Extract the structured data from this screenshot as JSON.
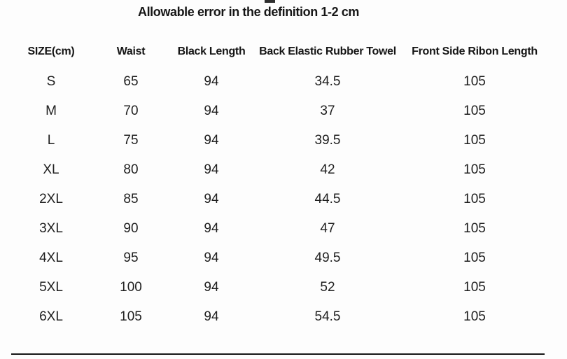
{
  "title": "Allowable error in the definition 1-2 cm",
  "colors": {
    "text": "#1e1e1e",
    "header_text": "#151515",
    "background": "#fdfdfd",
    "divider": "#161616"
  },
  "chart_data": {
    "type": "table",
    "title": "Allowable error in the definition 1-2 cm",
    "columns": [
      "SIZE(cm)",
      "Waist",
      "Black Length",
      "Back Elastic Rubber Towel",
      "Front Side Ribon Length"
    ],
    "rows": [
      [
        "S",
        "65",
        "94",
        "34.5",
        "105"
      ],
      [
        "M",
        "70",
        "94",
        "37",
        "105"
      ],
      [
        "L",
        "75",
        "94",
        "39.5",
        "105"
      ],
      [
        "XL",
        "80",
        "94",
        "42",
        "105"
      ],
      [
        "2XL",
        "85",
        "94",
        "44.5",
        "105"
      ],
      [
        "3XL",
        "90",
        "94",
        "47",
        "105"
      ],
      [
        "4XL",
        "95",
        "94",
        "49.5",
        "105"
      ],
      [
        "5XL",
        "100",
        "94",
        "52",
        "105"
      ],
      [
        "6XL",
        "105",
        "94",
        "54.5",
        "105"
      ]
    ]
  }
}
